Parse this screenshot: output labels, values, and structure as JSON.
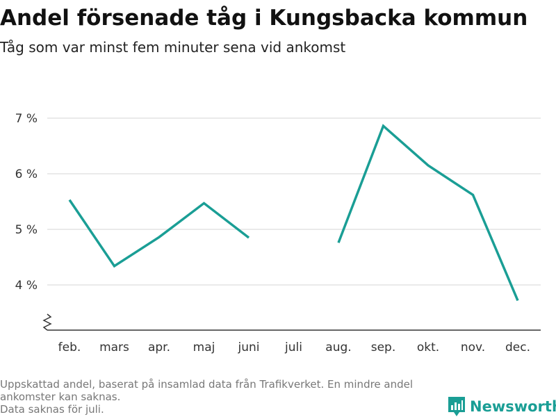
{
  "title": "Andel försenade tåg i Kungsbacka kommun",
  "subtitle": "Tåg som var minst fem minuter sena vid ankomst",
  "footnote": {
    "line1": "Uppskattad andel, baserat på insamlad data från Trafikverket. En mindre andel",
    "line2": "ankomster kan saknas.",
    "line3": "Data saknas för juli."
  },
  "logo": {
    "text": "Newsworthy",
    "icon": "bar-chart-icon",
    "color": "#1a9e95"
  },
  "chart_data": {
    "type": "line",
    "title": "Andel försenade tåg i Kungsbacka kommun",
    "subtitle": "Tåg som var minst fem minuter sena vid ankomst",
    "categories": [
      "feb.",
      "mars",
      "apr.",
      "maj",
      "juni",
      "juli",
      "aug.",
      "sep.",
      "okt.",
      "nov.",
      "dec."
    ],
    "series": [
      {
        "color": "#1a9e95",
        "values": [
          5.53,
          4.34,
          4.86,
          5.47,
          4.85,
          null,
          4.76,
          6.86,
          6.15,
          5.62,
          3.72
        ]
      }
    ],
    "yticks": [
      {
        "value": 4,
        "label": "4 %"
      },
      {
        "value": 5,
        "label": "5 %"
      },
      {
        "value": 6,
        "label": "6 %"
      },
      {
        "value": 7,
        "label": "7 %"
      }
    ],
    "ylim": [
      3.2,
      7.25
    ],
    "y_axis_break": true,
    "grid": true,
    "legend": "none"
  }
}
